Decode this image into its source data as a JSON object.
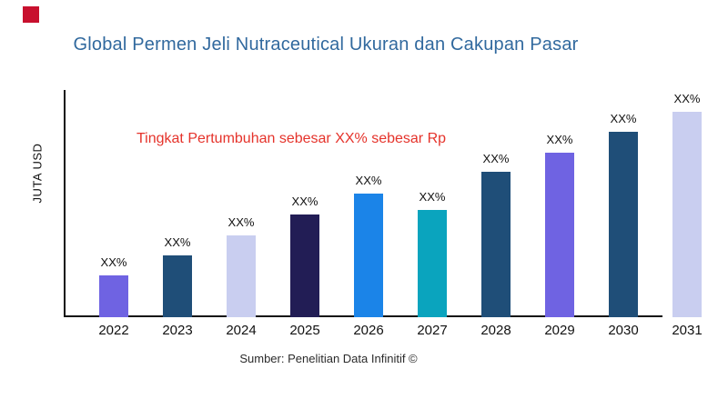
{
  "brand": {
    "mark_color": "#C8102E"
  },
  "header": {
    "title": "Global Permen Jeli Nutraceutical Ukuran dan Cakupan Pasar",
    "title_color": "#31699E"
  },
  "annotation": {
    "text": "Tingkat Pertumbuhan sebesar XX% sebesar Rp",
    "color": "#E5332B"
  },
  "chart_data": {
    "type": "bar",
    "title": "Global Permen Jeli Nutraceutical Ukuran dan Cakupan Pasar",
    "xlabel": "",
    "ylabel": "JUTA USD",
    "categories": [
      "2022",
      "2023",
      "2024",
      "2025",
      "2026",
      "2027",
      "2028",
      "2029",
      "2030",
      "2031"
    ],
    "values": [
      46,
      68,
      90,
      113,
      136,
      118,
      160,
      181,
      204,
      226
    ],
    "values_note": "relative bar heights (no y-axis tick labels shown); dip at 2027",
    "bar_labels": [
      "XX%",
      "XX%",
      "XX%",
      "XX%",
      "XX%",
      "XX%",
      "XX%",
      "XX%",
      "XX%",
      "XX%"
    ],
    "bar_colors": [
      "#6F63E2",
      "#1F4E78",
      "#C9CEF0",
      "#221D55",
      "#1B84E8",
      "#0AA4BE",
      "#1F4E78",
      "#6F63E2",
      "#1F4E78",
      "#C9CEF0"
    ],
    "annotation": "Tingkat Pertumbuhan sebesar XX% sebesar Rp",
    "legend": false,
    "grid": false,
    "axis_color": "#111111"
  },
  "footer": {
    "source": "Sumber: Penelitian Data Infinitif ©"
  }
}
